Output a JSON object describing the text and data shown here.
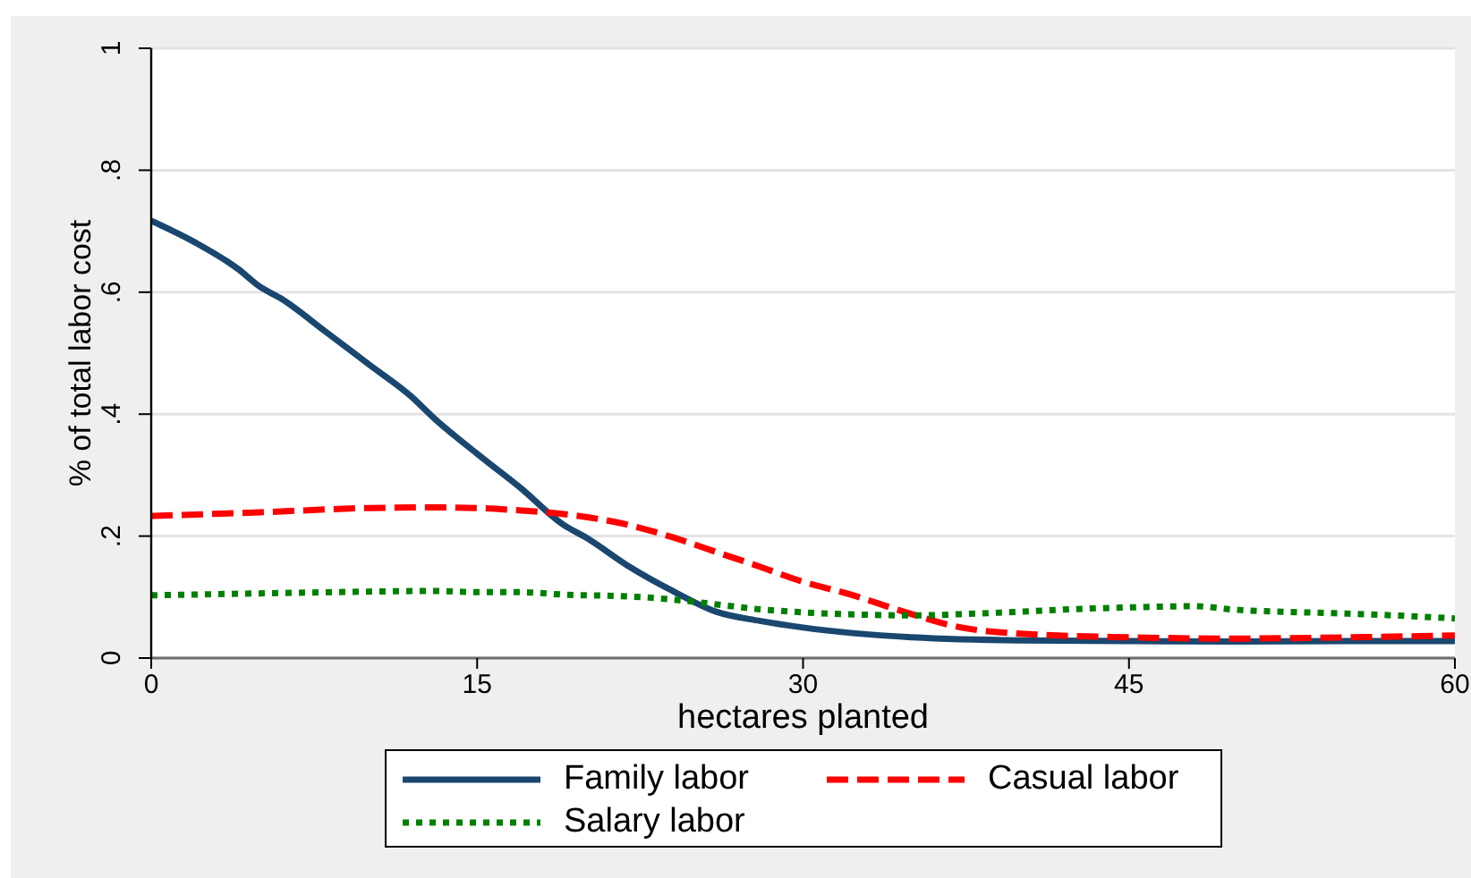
{
  "chart_data": {
    "type": "line",
    "xlabel": "hectares planted",
    "ylabel": "% of total labor cost",
    "xlim": [
      0,
      60
    ],
    "xticks": [
      0,
      15,
      30,
      45,
      60
    ],
    "ylim": [
      0,
      1
    ],
    "yticks": [
      0,
      {
        "value": 0.2,
        "label": ".2"
      },
      {
        "value": 0.4,
        "label": ".4"
      },
      {
        "value": 0.6,
        "label": ".6"
      },
      {
        "value": 0.8,
        "label": ".8"
      },
      1
    ],
    "grid": "y",
    "legend": "bottom",
    "series": [
      {
        "name": "Family labor",
        "color": "#1a476f",
        "line_style": "solid",
        "x": [
          0,
          2,
          4,
          5,
          6,
          8,
          10,
          12,
          13,
          15,
          17,
          19,
          20,
          22,
          24,
          26,
          28,
          30,
          35,
          40,
          45,
          50,
          55,
          60
        ],
        "values": [
          0.717,
          0.682,
          0.638,
          0.609,
          0.589,
          0.536,
          0.482,
          0.428,
          0.394,
          0.335,
          0.279,
          0.218,
          0.198,
          0.15,
          0.11,
          0.076,
          0.061,
          0.05,
          0.034,
          0.029,
          0.028,
          0.027,
          0.028,
          0.028
        ]
      },
      {
        "name": "Casual labor",
        "color": "#ff0000",
        "line_style": "dashed",
        "x": [
          0,
          5,
          10,
          13,
          15,
          17,
          19,
          22,
          24,
          26,
          28,
          30,
          32,
          35,
          37,
          40,
          45,
          50,
          55,
          60
        ],
        "values": [
          0.233,
          0.239,
          0.246,
          0.247,
          0.246,
          0.242,
          0.236,
          0.218,
          0.198,
          0.174,
          0.15,
          0.125,
          0.106,
          0.072,
          0.052,
          0.04,
          0.034,
          0.032,
          0.034,
          0.037
        ]
      },
      {
        "name": "Salary labor",
        "color": "#008000",
        "line_style": "dotted",
        "x": [
          0,
          5,
          10,
          13,
          15,
          17,
          19,
          22,
          24,
          26,
          28,
          30,
          33,
          35,
          38,
          40,
          43,
          45,
          48,
          50,
          53,
          55,
          60
        ],
        "values": [
          0.103,
          0.106,
          0.109,
          0.11,
          0.108,
          0.108,
          0.104,
          0.101,
          0.096,
          0.088,
          0.08,
          0.075,
          0.071,
          0.07,
          0.073,
          0.076,
          0.081,
          0.083,
          0.085,
          0.079,
          0.075,
          0.073,
          0.065
        ]
      }
    ]
  }
}
